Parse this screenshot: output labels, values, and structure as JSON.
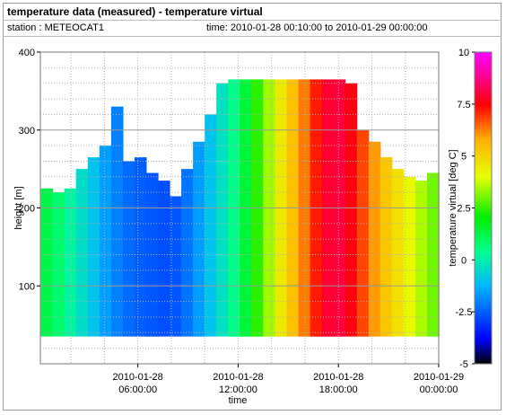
{
  "header": {
    "title": "temperature data (measured) - temperature virtual",
    "station": "station : METEOCAT1",
    "time_range": "time: 2010-01-28 00:10:00 to 2010-01-29 00:00:00"
  },
  "chart_data": {
    "type": "heatmap",
    "xlabel": "time",
    "ylabel": "height [m]",
    "colorbar_label": "temperature virtual [deg C]",
    "ylim": [
      0,
      400
    ],
    "xlim_hours": [
      0.1667,
      24
    ],
    "clim": [
      -5,
      10
    ],
    "y_ticks": [
      100,
      200,
      300,
      400
    ],
    "colorbar_ticks": [
      "10",
      "7.5",
      "5",
      "2.5",
      "0",
      "-2.5",
      "-5"
    ],
    "colorbar_tick_values": [
      10,
      7.5,
      5,
      2.5,
      0,
      -2.5,
      -5
    ],
    "x_ticks": [
      {
        "hour": 6,
        "line1": "2010-01-28",
        "line2": "06:00:00"
      },
      {
        "hour": 12,
        "line1": "2010-01-28",
        "line2": "12:00:00"
      },
      {
        "hour": 18,
        "line1": "2010-01-28",
        "line2": "18:00:00"
      },
      {
        "hour": 24,
        "line1": "2010-01-29",
        "line2": "00:00:00"
      }
    ],
    "data_bottom_m": 35,
    "time_hours": [
      0.2,
      0.9,
      1.6,
      2.3,
      3.0,
      3.7,
      4.4,
      5.1,
      5.8,
      6.5,
      7.2,
      7.9,
      8.6,
      9.3,
      10.0,
      10.7,
      11.4,
      12.1,
      12.8,
      13.5,
      14.2,
      14.9,
      15.6,
      16.3,
      17.0,
      17.7,
      18.4,
      19.1,
      19.8,
      20.5,
      21.2,
      21.9,
      22.6,
      23.3,
      24.0
    ],
    "top_height_m": [
      225,
      220,
      225,
      250,
      265,
      280,
      330,
      260,
      265,
      245,
      235,
      215,
      250,
      285,
      320,
      360,
      365,
      365,
      365,
      365,
      365,
      365,
      365,
      365,
      365,
      365,
      360,
      300,
      285,
      265,
      250,
      240,
      235,
      245,
      300
    ],
    "temperature_degC": [
      1.2,
      0.8,
      0.2,
      -0.4,
      -1.0,
      -1.6,
      -2.0,
      -2.3,
      -2.5,
      -2.6,
      -2.7,
      -2.6,
      -2.2,
      -1.6,
      -1.0,
      -0.3,
      0.5,
      1.4,
      2.4,
      3.4,
      4.5,
      5.4,
      6.3,
      7.2,
      7.9,
      8.0,
      7.6,
      6.8,
      6.0,
      5.3,
      4.7,
      4.1,
      3.5,
      3.0,
      2.6
    ]
  }
}
